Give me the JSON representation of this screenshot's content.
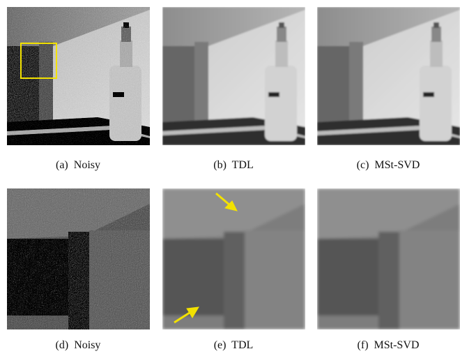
{
  "panels": [
    {
      "caption": "(a)  Noisy"
    },
    {
      "caption": "(b)  TDL"
    },
    {
      "caption": "(c)  MSt-SVD"
    },
    {
      "caption": "(d)  Noisy"
    },
    {
      "caption": "(e)  TDL"
    },
    {
      "caption": "(f)  MSt-SVD"
    }
  ]
}
